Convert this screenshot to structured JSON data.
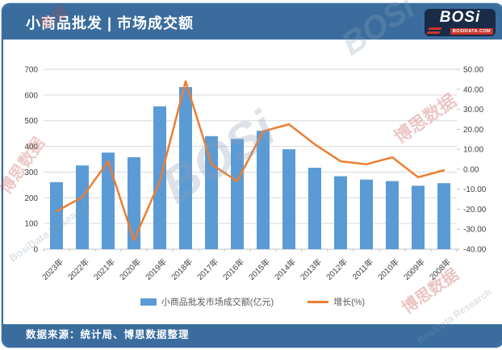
{
  "header": {
    "title": "小商品批发 | 市场成交额",
    "logo": {
      "text": "BOSi",
      "sub": "BOSIDATA.COM"
    }
  },
  "footer": {
    "source": "数据来源：统计局、博思数据整理"
  },
  "watermarks": [
    {
      "text": "数据"
    },
    {
      "text": "博思数据"
    },
    {
      "text": "BosiData Research"
    },
    {
      "text": "BOSi"
    },
    {
      "text": "博思数据"
    },
    {
      "text": "博思数据"
    },
    {
      "text": "BosiData Research"
    },
    {
      "text": "BOSi"
    }
  ],
  "colors": {
    "frame": "#3A6D9E",
    "bar": "#5B9BD5",
    "line": "#ED7D31",
    "grid": "#D9D9D9",
    "axis_line": "#BFBFBF",
    "tick_text": "#404040"
  },
  "chart_data": {
    "type": "bar",
    "subtype": "bar-line-combo",
    "categories": [
      "2023年",
      "2022年",
      "2021年",
      "2020年",
      "2019年",
      "2018年",
      "2017年",
      "2016年",
      "2015年",
      "2014年",
      "2013年",
      "2012年",
      "2011年",
      "2010年",
      "2009年",
      "2008年"
    ],
    "series": [
      {
        "name": "小商品批发市场成交额(亿元)",
        "type": "bar",
        "axis": "left",
        "values": [
          261,
          326,
          376,
          358,
          556,
          631,
          440,
          429,
          461,
          389,
          317,
          284,
          271,
          265,
          247,
          257
        ]
      },
      {
        "name": "增长(%)",
        "type": "line",
        "axis": "right",
        "values": [
          -21,
          -14,
          4,
          -35.5,
          -6,
          44,
          2.5,
          -6,
          19,
          22.5,
          12.5,
          4,
          2.5,
          6,
          -4,
          -0.5
        ]
      }
    ],
    "left_axis": {
      "min": 0,
      "max": 700,
      "step": 100,
      "labels": [
        "0",
        "100",
        "200",
        "300",
        "400",
        "500",
        "600",
        "700"
      ]
    },
    "right_axis": {
      "min": -40,
      "max": 50,
      "step": 10,
      "labels": [
        "-40.00",
        "-30.00",
        "-20.00",
        "-10.00",
        "0.00",
        "10.00",
        "20.00",
        "30.00",
        "40.00",
        "50.00"
      ]
    },
    "grid": true,
    "legend_position": "bottom"
  }
}
